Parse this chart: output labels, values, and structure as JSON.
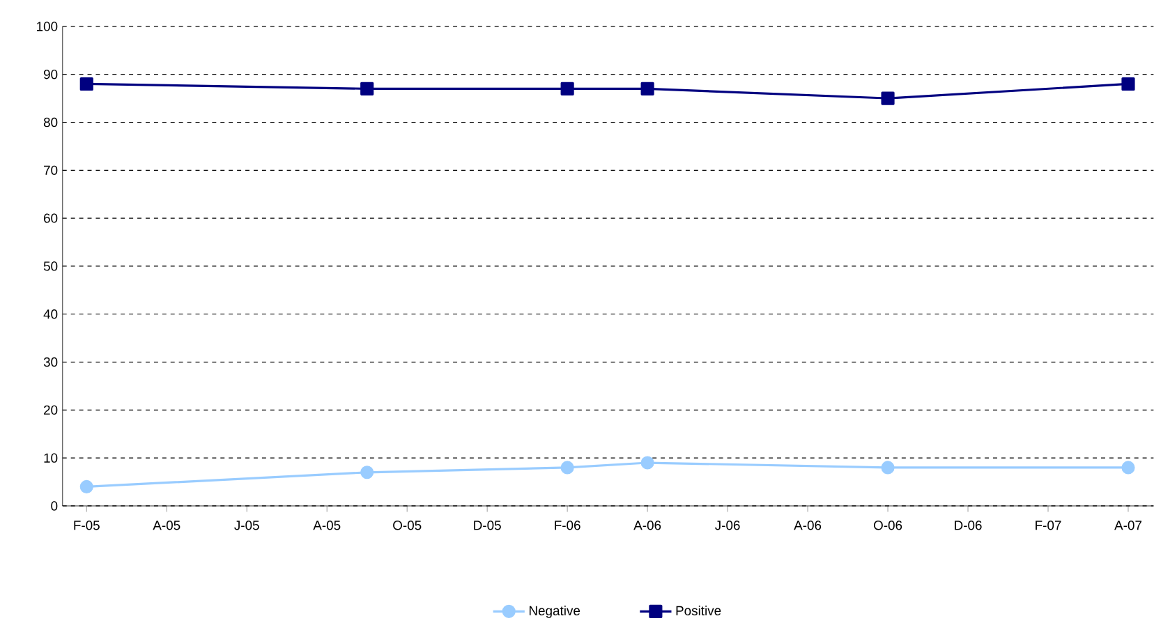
{
  "chart_data": {
    "type": "line",
    "x": [
      "2005-02",
      "2005-09",
      "2006-02",
      "2006-04",
      "2006-10",
      "2007-04"
    ],
    "series": [
      {
        "name": "Negative",
        "color": "#99ccff",
        "marker": "circle",
        "values": [
          4,
          7,
          8,
          9,
          8,
          8
        ]
      },
      {
        "name": "Positive",
        "color": "#000080",
        "marker": "square",
        "values": [
          88,
          87,
          87,
          87,
          85,
          88
        ]
      }
    ],
    "xlim": [
      "2005-01-13",
      "2007-04-20"
    ],
    "xticks": [
      {
        "value": "2005-02",
        "label": "F-05"
      },
      {
        "value": "2005-04",
        "label": "A-05"
      },
      {
        "value": "2005-06",
        "label": "J-05"
      },
      {
        "value": "2005-08",
        "label": "A-05"
      },
      {
        "value": "2005-10",
        "label": "O-05"
      },
      {
        "value": "2005-12",
        "label": "D-05"
      },
      {
        "value": "2006-02",
        "label": "F-06"
      },
      {
        "value": "2006-04",
        "label": "A-06"
      },
      {
        "value": "2006-06",
        "label": "J-06"
      },
      {
        "value": "2006-08",
        "label": "A-06"
      },
      {
        "value": "2006-10",
        "label": "O-06"
      },
      {
        "value": "2006-12",
        "label": "D-06"
      },
      {
        "value": "2007-02",
        "label": "F-07"
      },
      {
        "value": "2007-04",
        "label": "A-07"
      }
    ],
    "ylim": [
      0,
      100
    ],
    "yticks": [
      0,
      10,
      20,
      30,
      40,
      50,
      60,
      70,
      80,
      90,
      100
    ],
    "grid": "y",
    "legend": "bottom"
  }
}
